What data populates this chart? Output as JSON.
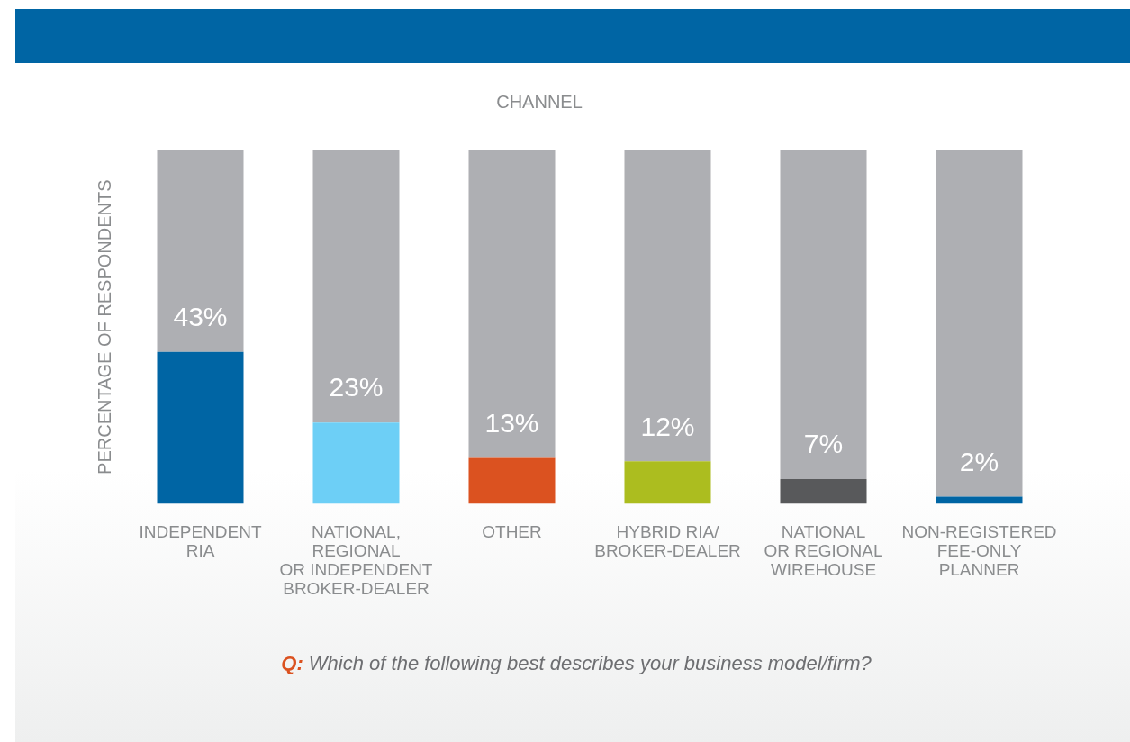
{
  "chart_data": {
    "type": "bar",
    "stacked": true,
    "title": "CHANNEL",
    "ylabel": "PERCENTAGE OF RESPONDENTS",
    "annotations": [
      "Q:",
      "Which of the following best describes your business model/firm?"
    ],
    "categories": [
      "INDEPENDENT\nRIA",
      "NATIONAL,\nREGIONAL\nOR INDEPENDENT\nBROKER-DEALER",
      "OTHER",
      "HYBRID RIA/\nBROKER-DEALER",
      "NATIONAL\nOR REGIONAL\nWIREHOUSE",
      "NON-REGISTERED\nFEE-ONLY\nPLANNER"
    ],
    "series": [
      {
        "colors": [
          "#0065a4",
          "#6dcff6",
          "#db5220",
          "#acbd1f",
          "#58595b",
          "#0065a4"
        ],
        "values": [
          43,
          23,
          13,
          12,
          7,
          2
        ],
        "value_labels": [
          "43%",
          "23%",
          "13%",
          "12%",
          "7%",
          "2%"
        ]
      },
      {
        "color": "#aeafb3",
        "values": [
          57,
          77,
          87,
          88,
          93,
          98
        ]
      }
    ],
    "grid": false,
    "legend": false
  }
}
